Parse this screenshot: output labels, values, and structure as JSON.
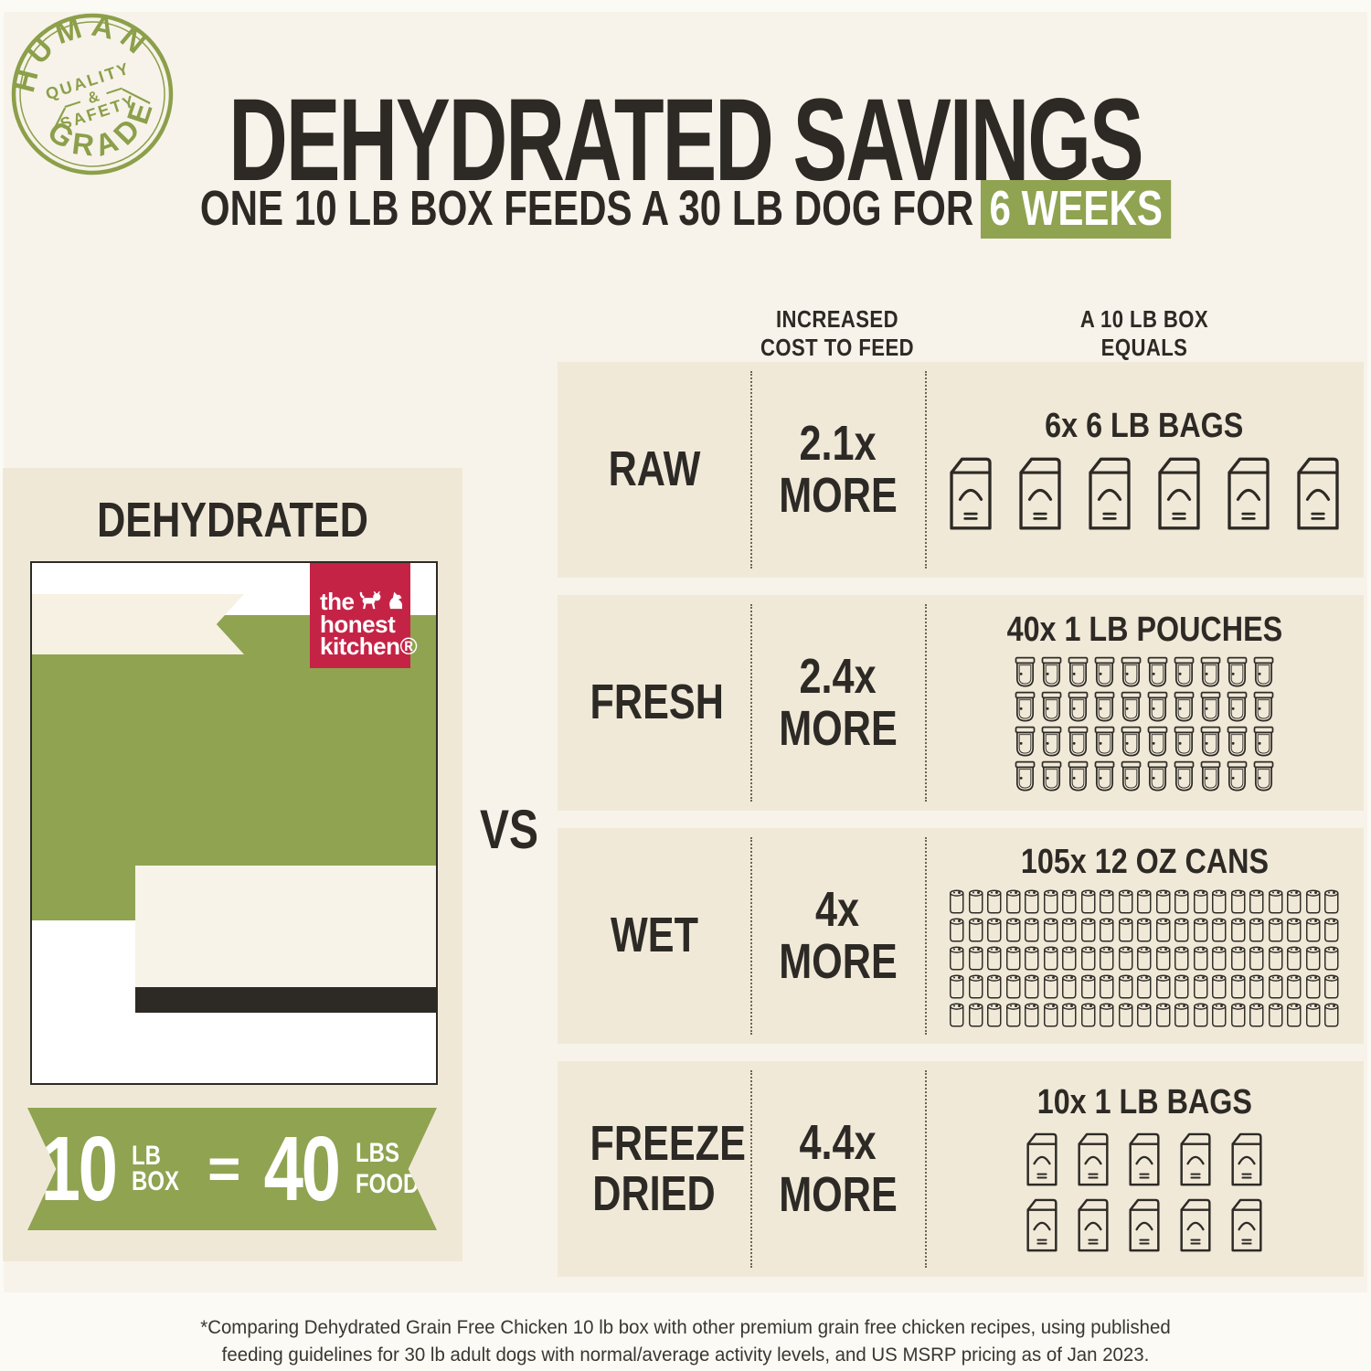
{
  "colors": {
    "background": "#f7f3ea",
    "panel": "#f1e9d8",
    "ink": "#2d2a26",
    "green": "#8fa351",
    "logo_red": "#c52346",
    "cream": "#f6f1e3",
    "white": "#ffffff"
  },
  "badge": {
    "arc_top": "HUMAN",
    "arc_bottom": "GRADE",
    "center_line1": "QUALITY",
    "center_line2": "&",
    "center_line3": "SAFETY"
  },
  "header": {
    "title": "DEHYDRATED SAVINGS",
    "subtitle": "ONE 10 LB BOX FEEDS A 30 LB DOG FOR",
    "subtitle_highlight": "6 WEEKS"
  },
  "table_headers": {
    "cost_line1": "INCREASED",
    "cost_line2": "COST TO FEED",
    "equals_line1": "A 10 LB BOX",
    "equals_line2": "EQUALS"
  },
  "left_panel": {
    "heading": "DEHYDRATED",
    "logo_line1": "the",
    "logo_line2": "honest",
    "logo_line3": "kitchen®",
    "ribbon": {
      "value1": "10",
      "unit1_line1": "LB",
      "unit1_line2": "BOX",
      "equals": "=",
      "value2": "40",
      "unit2_line1": "LBS",
      "unit2_script": "of",
      "unit2_line2": "FOOD"
    }
  },
  "vs_label": "VS",
  "rows": [
    {
      "label": "RAW",
      "cost_multiplier": "2.1x",
      "cost_word": "MORE",
      "package_caption": "6x 6 LB BAGS",
      "package_count": 6,
      "icon": "bag-icon"
    },
    {
      "label": "FRESH",
      "cost_multiplier": "2.4x",
      "cost_word": "MORE",
      "package_caption": "40x 1 LB POUCHES",
      "package_count": 40,
      "icon": "pouch-icon"
    },
    {
      "label": "WET",
      "cost_multiplier": "4x",
      "cost_word": "MORE",
      "package_caption": "105x 12 OZ CANS",
      "package_count": 105,
      "icon": "can-icon"
    },
    {
      "label": "FREEZE DRIED",
      "cost_multiplier": "4.4x",
      "cost_word": "MORE",
      "package_caption": "10x 1 LB BAGS",
      "package_count": 10,
      "icon": "bag-icon"
    }
  ],
  "footnote_line1": "*Comparing Dehydrated Grain Free Chicken 10 lb box with other premium grain free chicken recipes, using published",
  "footnote_line2": "feeding guidelines for 30 lb adult dogs with normal/average activity levels, and US MSRP pricing as of Jan 2023.",
  "chart_data": {
    "type": "table",
    "title": "DEHYDRATED SAVINGS",
    "subtitle": "ONE 10 LB BOX FEEDS A 30 LB DOG FOR 6 WEEKS",
    "categories": [
      "RAW",
      "FRESH",
      "WET",
      "FREEZE DRIED"
    ],
    "series": [
      {
        "name": "Increased cost to feed (multiplier vs dehydrated)",
        "values": [
          2.1,
          2.4,
          4,
          4.4
        ]
      },
      {
        "name": "A 10 lb box equals (number of packages)",
        "values": [
          6,
          40,
          105,
          10
        ]
      }
    ],
    "package_units": [
      "6 lb bags",
      "1 lb pouches",
      "12 oz cans",
      "1 lb bags"
    ],
    "baseline": "Dehydrated 10 lb box = 40 lbs of food"
  }
}
